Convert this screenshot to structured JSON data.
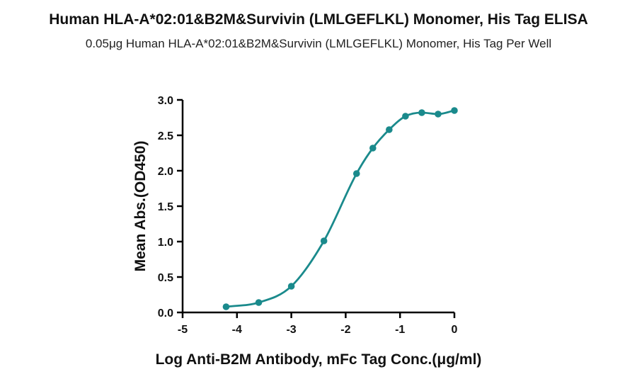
{
  "chart_data": {
    "type": "scatter",
    "title": "Human HLA-A*02:01&B2M&Survivin (LMLGEFLKL) Monomer, His Tag ELISA",
    "subtitle": "0.05μg Human HLA-A*02:01&B2M&Survivin (LMLGEFLKL) Monomer, His Tag Per Well",
    "xlabel": "Log Anti-B2M Antibody, mFc Tag Conc.(μg/ml)",
    "ylabel": "Mean Abs.(OD450)",
    "xlim": [
      -5,
      0
    ],
    "ylim": [
      0,
      3.0
    ],
    "x_ticks": [
      "-5",
      "-4",
      "-3",
      "-2",
      "-1",
      "0"
    ],
    "y_ticks": [
      "0.0",
      "0.5",
      "1.0",
      "1.5",
      "2.0",
      "2.5",
      "3.0"
    ],
    "grid": false,
    "series": [
      {
        "color": "#1a8a8c",
        "x": [
          -4.2,
          -3.6,
          -3.0,
          -2.4,
          -1.8,
          -1.5,
          -1.2,
          -0.9,
          -0.6,
          -0.3,
          0.0
        ],
        "y": [
          0.08,
          0.14,
          0.37,
          1.01,
          1.96,
          2.32,
          2.58,
          2.77,
          2.82,
          2.8,
          2.85
        ]
      }
    ]
  }
}
